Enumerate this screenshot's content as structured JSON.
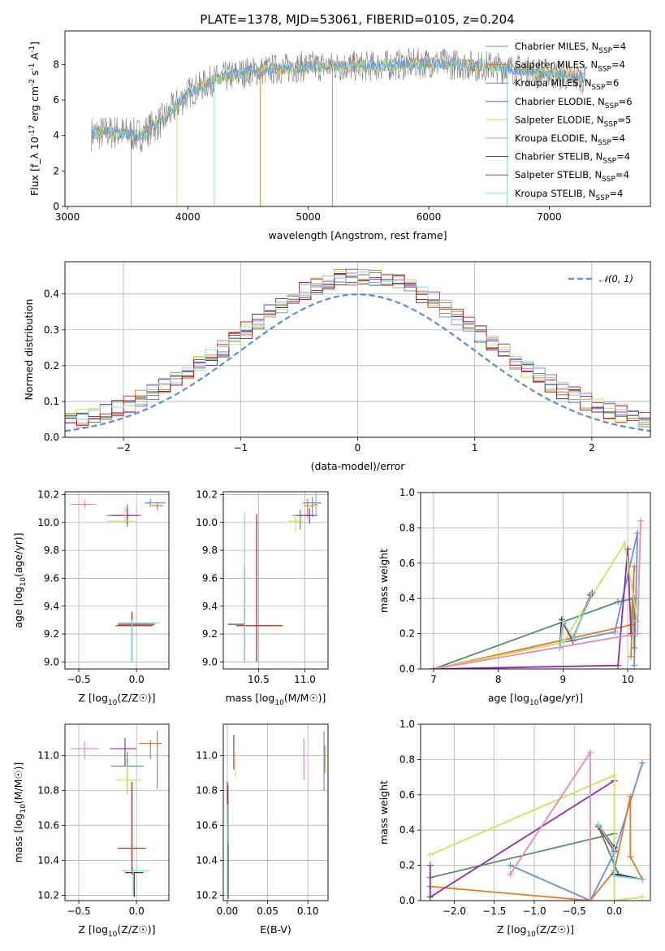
{
  "colors": [
    "#6a8fdc",
    "#e07b2a",
    "#5e8a66",
    "#8e2fa6",
    "#c9e55c",
    "#ec87b8",
    "#3a3a3a",
    "#b22222",
    "#86d5dc"
  ],
  "chart_data": [
    {
      "id": "spectrum",
      "type": "line",
      "title": "PLATE=1378, MJD=53061, FIBERID=0105, z=0.204",
      "xlabel": "wavelength [Angstrom, rest frame]",
      "ylabel": "Flux [f_λ 10^-17 erg cm^-2 s^-1 A^-1]",
      "xlim": [
        2980,
        7840
      ],
      "ylim": [
        0,
        9.9
      ],
      "xticks": [
        3000,
        4000,
        5000,
        6000,
        7000
      ],
      "yticks": [
        0,
        2,
        4,
        6,
        8
      ],
      "legend_position": "top-right",
      "series": [
        {
          "name": "Chabrier MILES, N_SSP=4"
        },
        {
          "name": "Salpeter MILES, N_SSP=4"
        },
        {
          "name": "Kroupa MILES, N_SSP=6"
        },
        {
          "name": "Chabrier ELODIE, N_SSP=6"
        },
        {
          "name": "Salpeter ELODIE, N_SSP=5"
        },
        {
          "name": "Kroupa ELODIE, N_SSP=4"
        },
        {
          "name": "Chabrier STELIB, N_SSP=4"
        },
        {
          "name": "Salpeter STELIB, N_SSP=4"
        },
        {
          "name": "Kroupa STELIB, N_SSP=4"
        }
      ],
      "continuum": {
        "x": [
          3200,
          3400,
          3600,
          3800,
          4000,
          4200,
          4500,
          5000,
          5500,
          6000,
          6500,
          7000,
          7300
        ],
        "y": [
          4.1,
          4.2,
          4.0,
          4.9,
          6.4,
          7.1,
          7.6,
          7.9,
          7.9,
          8.1,
          7.9,
          7.5,
          7.2
        ]
      }
    },
    {
      "id": "residuals",
      "type": "histogram",
      "xlabel": "(data-model)/error",
      "ylabel": "Normed distribution",
      "xlim": [
        -2.5,
        2.5
      ],
      "ylim": [
        0,
        0.49
      ],
      "xticks": [
        -2,
        -1,
        0,
        1,
        2
      ],
      "yticks": [
        0.0,
        0.1,
        0.2,
        0.3,
        0.4
      ],
      "grid": true,
      "legend_position": "top-right",
      "reference_curve": {
        "name": "𝒩(0, 1)",
        "mean": 0,
        "sigma": 1
      },
      "bin_width": 0.1
    },
    {
      "id": "age-Z",
      "type": "errorbar",
      "xlabel": "Z [log10(Z/Z☉)]",
      "ylabel": "age [log10(age/yr)]",
      "xlim": [
        -0.62,
        0.28
      ],
      "ylim": [
        8.95,
        10.22
      ],
      "xticks": [
        -0.5,
        0.0
      ],
      "yticks": [
        9.0,
        9.2,
        9.4,
        9.6,
        9.8,
        10.0,
        10.2
      ],
      "grid": true,
      "points": [
        {
          "x": 0.12,
          "y": 10.14,
          "xerr": [
            0.05,
            0.13
          ],
          "yerr": [
            0.03,
            0.03
          ]
        },
        {
          "x": 0.18,
          "y": 10.12,
          "xerr": [
            0.05,
            0.05
          ],
          "yerr": [
            0.03,
            0.02
          ]
        },
        {
          "x": -0.08,
          "y": 10.05,
          "xerr": [
            0.18,
            0.12
          ],
          "yerr": [
            0.08,
            0.08
          ]
        },
        {
          "x": -0.08,
          "y": 10.05,
          "xerr": [
            0.14,
            0.1
          ],
          "yerr": [
            0.06,
            0.05
          ]
        },
        {
          "x": -0.1,
          "y": 10.01,
          "xerr": [
            0.15,
            0.09
          ],
          "yerr": [
            0.02,
            0.1
          ]
        },
        {
          "x": -0.45,
          "y": 10.13,
          "xerr": [
            0.12,
            0.1
          ],
          "yerr": [
            0.03,
            0.03
          ]
        },
        {
          "x": -0.04,
          "y": 9.27,
          "xerr": [
            0.12,
            0.2
          ],
          "yerr": [
            0.27,
            0.02
          ]
        },
        {
          "x": -0.04,
          "y": 9.26,
          "xerr": [
            0.14,
            0.18
          ],
          "yerr": [
            0.26,
            0.1
          ]
        },
        {
          "x": -0.04,
          "y": 9.28,
          "xerr": [
            0.12,
            0.24
          ],
          "yerr": [
            0.28,
            0.02
          ]
        }
      ]
    },
    {
      "id": "age-mass",
      "type": "errorbar",
      "xlabel": "mass [log10(M/M☉)]",
      "ylabel": "",
      "xlim": [
        10.12,
        11.25
      ],
      "ylim": [
        8.95,
        10.22
      ],
      "xticks": [
        10.5,
        11.0
      ],
      "yticks": [
        9.0,
        9.2,
        9.4,
        9.6,
        9.8,
        10.0,
        10.2
      ],
      "grid": true,
      "points": [
        {
          "x": 11.08,
          "y": 10.14,
          "xerr": [
            0.1,
            0.1
          ],
          "yerr": [
            0.1,
            0.04
          ]
        },
        {
          "x": 11.03,
          "y": 10.12,
          "xerr": [
            0.04,
            0.08
          ],
          "yerr": [
            0.08,
            0.05
          ]
        },
        {
          "x": 10.95,
          "y": 10.05,
          "xerr": [
            0.08,
            0.15
          ],
          "yerr": [
            0.1,
            0.04
          ]
        },
        {
          "x": 11.05,
          "y": 10.05,
          "xerr": [
            0.14,
            0.08
          ],
          "yerr": [
            0.06,
            0.05
          ]
        },
        {
          "x": 10.9,
          "y": 10.01,
          "xerr": [
            0.08,
            0.08
          ],
          "yerr": [
            0.08,
            0.05
          ]
        },
        {
          "x": 11.12,
          "y": 10.13,
          "xerr": [
            0.02,
            0.02
          ],
          "yerr": [
            0.08,
            0.08
          ]
        },
        {
          "x": 10.35,
          "y": 9.27,
          "xerr": [
            0.18,
            0.0
          ],
          "yerr": [
            0.27,
            0.41
          ]
        },
        {
          "x": 10.48,
          "y": 9.26,
          "xerr": [
            0.22,
            0.28
          ],
          "yerr": [
            0.26,
            0.8
          ]
        },
        {
          "x": 10.35,
          "y": 9.27,
          "xerr": [
            0.0,
            0.0
          ],
          "yerr": [
            0.27,
            0.8
          ]
        }
      ]
    },
    {
      "id": "massweight-age",
      "type": "line",
      "xlabel": "age [log10(age/yr)]",
      "ylabel": "mass weight",
      "xlim": [
        6.8,
        10.35
      ],
      "ylim": [
        0,
        1
      ],
      "xticks": [
        7,
        8,
        9,
        10
      ],
      "yticks": [
        0.0,
        0.2,
        0.4,
        0.6,
        0.8,
        1.0
      ],
      "grid": true,
      "series": [
        {
          "x": [
            7.0,
            9.8,
            10.15,
            10.1
          ],
          "y": [
            0.0,
            0.21,
            0.77,
            0.02
          ]
        },
        {
          "x": [
            7.0,
            10.05,
            10.1,
            10.05
          ],
          "y": [
            0.0,
            0.25,
            0.58,
            0.07
          ]
        },
        {
          "x": [
            7.0,
            9.85,
            10.1,
            10.1
          ],
          "y": [
            0.0,
            0.38,
            0.4,
            0.12
          ]
        },
        {
          "x": [
            7.0,
            9.85,
            10.0,
            10.05
          ],
          "y": [
            0.0,
            0.02,
            0.68,
            0.2
          ]
        },
        {
          "x": [
            7.0,
            9.0,
            9.95,
            10.15
          ],
          "y": [
            0.0,
            0.15,
            0.71,
            0.27
          ]
        },
        {
          "x": [
            7.0,
            10.15,
            10.2
          ],
          "y": [
            0.0,
            0.2,
            0.84
          ]
        },
        {
          "x": [
            8.95,
            8.98,
            9.15,
            9.45
          ],
          "y": [
            0.12,
            0.28,
            0.17,
            0.43
          ]
        },
        {
          "x": [
            8.95,
            9.0,
            9.15,
            9.42
          ],
          "y": [
            0.12,
            0.26,
            0.16,
            0.42
          ]
        },
        {
          "x": [
            8.95,
            9.0,
            9.16,
            9.44
          ],
          "y": [
            0.12,
            0.27,
            0.17,
            0.43
          ]
        }
      ]
    },
    {
      "id": "mass-Z",
      "type": "errorbar",
      "xlabel": "Z [log10(Z/Z☉)]",
      "ylabel": "mass [log10(M/M☉)]",
      "xlim": [
        -0.62,
        0.28
      ],
      "ylim": [
        10.17,
        11.18
      ],
      "xticks": [
        -0.5,
        0.0
      ],
      "yticks": [
        10.2,
        10.4,
        10.6,
        10.8,
        11.0
      ],
      "grid": true,
      "points": [
        {
          "x": 0.18,
          "y": 11.08,
          "xerr": [
            0.0,
            0.0
          ],
          "yerr": [
            0.27,
            0.06
          ]
        },
        {
          "x": 0.12,
          "y": 11.07,
          "xerr": [
            0.1,
            0.1
          ],
          "yerr": [
            0.09,
            0.02
          ]
        },
        {
          "x": -0.08,
          "y": 10.94,
          "xerr": [
            0.14,
            0.14
          ],
          "yerr": [
            0.16,
            0.08
          ]
        },
        {
          "x": -0.1,
          "y": 11.04,
          "xerr": [
            0.13,
            0.1
          ],
          "yerr": [
            0.1,
            0.06
          ]
        },
        {
          "x": -0.08,
          "y": 10.86,
          "xerr": [
            0.1,
            0.12
          ],
          "yerr": [
            0.08,
            0.08
          ]
        },
        {
          "x": -0.45,
          "y": 11.04,
          "xerr": [
            0.12,
            0.12
          ],
          "yerr": [
            0.06,
            0.04
          ]
        },
        {
          "x": -0.02,
          "y": 10.33,
          "xerr": [
            0.08,
            0.08
          ],
          "yerr": [
            0.14,
            0.0
          ]
        },
        {
          "x": -0.04,
          "y": 10.47,
          "xerr": [
            0.12,
            0.12
          ],
          "yerr": [
            0.15,
            0.38
          ]
        },
        {
          "x": -0.03,
          "y": 10.34,
          "xerr": [
            0.1,
            0.14
          ],
          "yerr": [
            0.14,
            0.02
          ]
        }
      ]
    },
    {
      "id": "mass-EBV",
      "type": "errorbar",
      "xlabel": "E(B-V)",
      "ylabel": "",
      "xlim": [
        -0.005,
        0.125
      ],
      "ylim": [
        10.17,
        11.18
      ],
      "xticks": [
        0.0,
        0.05,
        0.1
      ],
      "xticklabels": [
        "0.00",
        "0.05",
        "0.10"
      ],
      "yticks": [
        10.2,
        10.4,
        10.6,
        10.8,
        11.0
      ],
      "grid": true,
      "points": [
        {
          "x": 0.12,
          "y": 10.98,
          "xerr": [
            0,
            0
          ],
          "yerr": [
            0.18,
            0.16
          ]
        },
        {
          "x": 0.121,
          "y": 10.98,
          "xerr": [
            0,
            0
          ],
          "yerr": [
            0.08,
            0.08
          ]
        },
        {
          "x": 0.001,
          "y": 10.58,
          "xerr": [
            0,
            0
          ],
          "yerr": [
            0.2,
            0.25
          ]
        },
        {
          "x": 0.008,
          "y": 11.02,
          "xerr": [
            0,
            0
          ],
          "yerr": [
            0.1,
            0.1
          ]
        },
        {
          "x": 0.01,
          "y": 10.94,
          "xerr": [
            0,
            0
          ],
          "yerr": [
            0.06,
            0.08
          ]
        },
        {
          "x": 0.095,
          "y": 10.98,
          "xerr": [
            0,
            0
          ],
          "yerr": [
            0.12,
            0.12
          ]
        },
        {
          "x": 0.001,
          "y": 10.3,
          "xerr": [
            0,
            0
          ],
          "yerr": [
            0.12,
            0.2
          ]
        },
        {
          "x": 0.0,
          "y": 10.73,
          "xerr": [
            0,
            0
          ],
          "yerr": [
            0.12,
            0.12
          ]
        },
        {
          "x": 0.0,
          "y": 10.42,
          "xerr": [
            0,
            0
          ],
          "yerr": [
            0.22,
            0.3
          ]
        }
      ]
    },
    {
      "id": "massweight-Z",
      "type": "line",
      "xlabel": "Z [log10(Z/Z☉)]",
      "ylabel": "mass weight",
      "xlim": [
        -2.42,
        0.45
      ],
      "ylim": [
        0,
        1
      ],
      "xticks": [
        -2.0,
        -1.5,
        -1.0,
        -0.5,
        0.0
      ],
      "yticks": [
        0.0,
        0.2,
        0.4,
        0.6,
        0.8,
        1.0
      ],
      "grid": true,
      "series": [
        {
          "x": [
            -1.3,
            -0.3,
            0.0,
            0.35
          ],
          "y": [
            0.2,
            0.0,
            0.27,
            0.78
          ]
        },
        {
          "x": [
            -2.3,
            -0.3,
            0.0,
            0.2,
            0.2,
            0.35
          ],
          "y": [
            0.08,
            0.0,
            0.17,
            0.59,
            0.25,
            0.12
          ]
        },
        {
          "x": [
            -2.3,
            0.0,
            0.0,
            -0.2,
            0.05,
            0.35
          ],
          "y": [
            0.13,
            0.38,
            0.3,
            0.42,
            0.15,
            0.12
          ]
        },
        {
          "x": [
            -2.3,
            -2.3,
            0.0
          ],
          "y": [
            0.2,
            0.02,
            0.68
          ]
        },
        {
          "x": [
            -2.3,
            0.0,
            0.0,
            0.35
          ],
          "y": [
            0.26,
            0.71,
            0.0,
            0.02
          ]
        },
        {
          "x": [
            -1.3,
            -0.3,
            -0.3
          ],
          "y": [
            0.15,
            0.84,
            0.0
          ]
        },
        {
          "x": [
            -0.2,
            0.0,
            0.0,
            0.35
          ],
          "y": [
            0.43,
            0.3,
            0.15,
            0.12
          ]
        },
        {
          "x": [
            -0.2,
            0.0
          ],
          "y": [
            0.42,
            0.28
          ]
        },
        {
          "x": [
            -0.2,
            0.0,
            0.0,
            0.35
          ],
          "y": [
            0.43,
            0.29,
            0.14,
            0.12
          ]
        }
      ]
    }
  ]
}
